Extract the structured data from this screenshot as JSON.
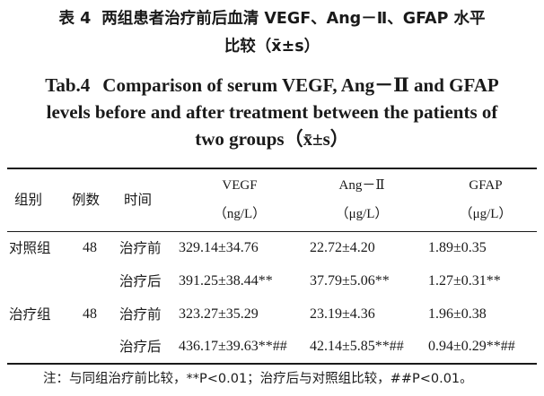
{
  "title_cn": {
    "number": "表 4",
    "line1": "两组患者治疗前后血清 VEGF、Ang－Ⅱ、GFAP 水平",
    "line2": "比较（x̄±s）"
  },
  "title_en": {
    "number": "Tab.4",
    "line1": "Comparison of serum VEGF, Ang－Ⅱ and GFAP",
    "line2": "levels before and after treatment between the patients of",
    "line3": "two groups（x̄±s）"
  },
  "table": {
    "headers": {
      "group": "组别",
      "count": "例数",
      "time": "时间",
      "vegf": "VEGF",
      "vegf_unit": "（ng/L）",
      "ang": "Ang－Ⅱ",
      "ang_unit": "（μg/L）",
      "gfap": "GFAP",
      "gfap_unit": "（μg/L）"
    },
    "rows": [
      {
        "group": "对照组",
        "count": "48",
        "time": "治疗前",
        "vegf": "329.14±34.76",
        "ang": "22.72±4.20",
        "gfap": "1.89±0.35"
      },
      {
        "group": "",
        "count": "",
        "time": "治疗后",
        "vegf": "391.25±38.44**",
        "ang": "37.79±5.06**",
        "gfap": "1.27±0.31**"
      },
      {
        "group": "治疗组",
        "count": "48",
        "time": "治疗前",
        "vegf": "323.27±35.29",
        "ang": "23.19±4.36",
        "gfap": "1.96±0.38"
      },
      {
        "group": "",
        "count": "",
        "time": "治疗后",
        "vegf": "436.17±39.63**##",
        "ang": "42.14±5.85**##",
        "gfap": "0.94±0.29**##"
      }
    ]
  },
  "note": "注：与同组治疗前比较，**P<0.01；治疗后与对照组比较，##P<0.01。"
}
